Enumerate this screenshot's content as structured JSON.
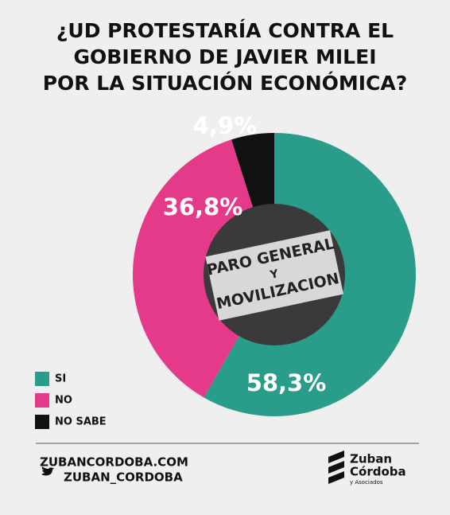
{
  "chart_data": {
    "type": "donut",
    "title": [
      "¿UD PROTESTARÍA CONTRA EL",
      "GOBIERNO DE JAVIER MILEI",
      "POR LA SITUACIÓN ECONÓMICA?"
    ],
    "categories": [
      "SI",
      "NO",
      "NO SABE"
    ],
    "values": [
      58.3,
      36.8,
      4.9
    ],
    "value_labels": [
      "58,3%",
      "36,8%",
      "4,9%"
    ],
    "colors": [
      "#2a9d8a",
      "#e5398a",
      "#111111"
    ],
    "center_image_text": [
      "PARO GENERAL",
      "Y",
      "MOVILIZACION"
    ]
  },
  "footer": {
    "website": "ZUBANCORDOBA.COM",
    "twitter": "ZUBAN_CORDOBA",
    "logo": [
      "Zuban",
      "Córdoba",
      "y Asociados"
    ]
  }
}
